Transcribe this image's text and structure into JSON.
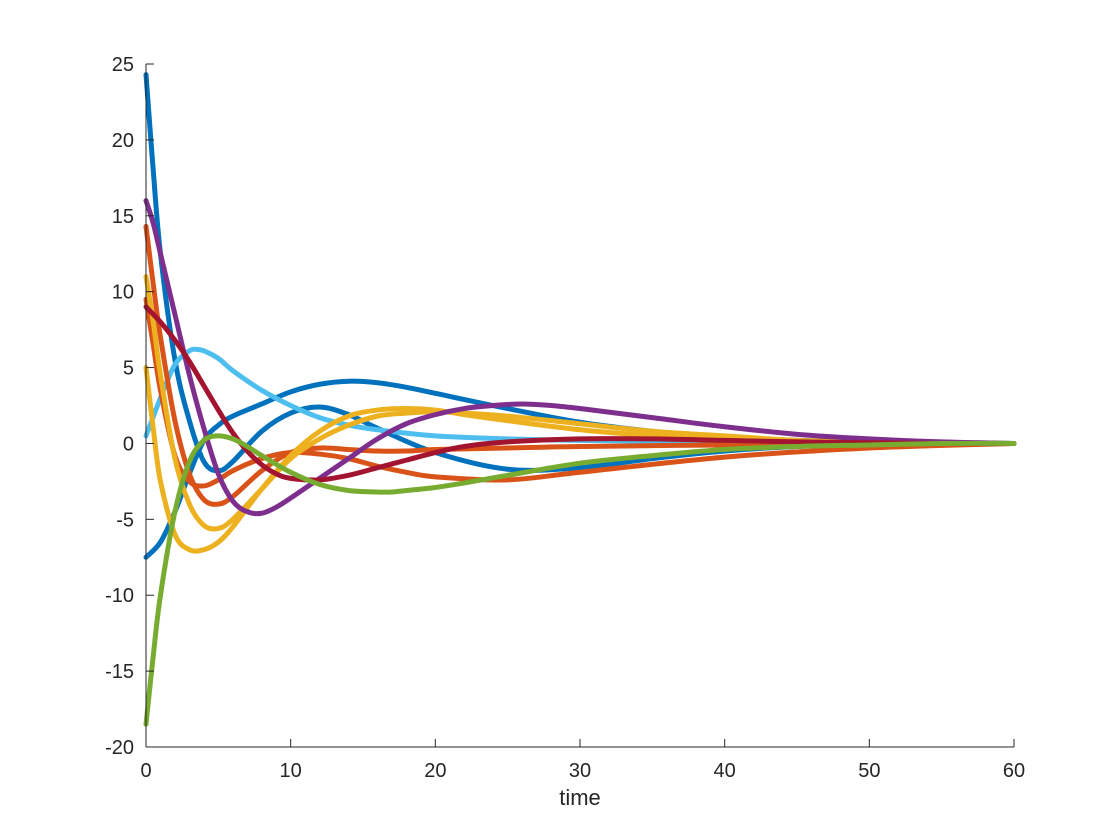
{
  "chart_data": {
    "type": "line",
    "title": "",
    "xlabel": "time",
    "ylabel": "",
    "xlim": [
      0,
      60
    ],
    "ylim": [
      -20,
      25
    ],
    "grid": false,
    "xticks": [
      0,
      10,
      20,
      30,
      40,
      50,
      60
    ],
    "yticks": [
      25,
      20,
      15,
      10,
      5,
      0,
      -5,
      -10,
      -15,
      -20
    ],
    "series": [
      {
        "color": "#0072BD",
        "x": [
          0,
          0.5,
          1,
          2,
          3,
          4,
          5,
          6,
          8,
          10,
          12,
          14,
          16,
          20,
          25,
          30,
          35,
          40,
          45,
          50,
          55,
          60
        ],
        "y": [
          24.3,
          18,
          12.5,
          5.5,
          1.5,
          -1.2,
          -1.8,
          -1.2,
          0.8,
          2.0,
          2.4,
          1.9,
          1.0,
          -0.6,
          -1.7,
          -1.6,
          -1.0,
          -0.5,
          -0.2,
          -0.1,
          0,
          0
        ]
      },
      {
        "color": "#0072BD",
        "x": [
          0,
          1,
          2,
          3,
          4,
          5,
          6,
          8,
          10,
          12,
          14,
          16,
          18,
          20,
          25,
          30,
          35,
          40,
          45,
          50,
          55,
          60
        ],
        "y": [
          -7.5,
          -6.5,
          -4.5,
          -2.0,
          0.2,
          1.2,
          1.8,
          2.6,
          3.4,
          3.9,
          4.1,
          4.0,
          3.7,
          3.3,
          2.3,
          1.4,
          0.8,
          0.4,
          0.2,
          0.1,
          0.05,
          0
        ]
      },
      {
        "color": "#4DBEEE",
        "x": [
          0,
          1,
          2,
          3,
          3.5,
          4,
          5,
          6,
          8,
          10,
          12,
          14,
          16,
          20,
          25,
          30,
          40,
          50,
          60
        ],
        "y": [
          0.5,
          3.0,
          5.2,
          6.1,
          6.2,
          6.1,
          5.6,
          4.8,
          3.5,
          2.5,
          1.7,
          1.2,
          0.9,
          0.5,
          0.3,
          0.2,
          0.1,
          0.05,
          0
        ]
      },
      {
        "color": "#D95319",
        "x": [
          0,
          0.5,
          1,
          2,
          3,
          4,
          5,
          6,
          8,
          10,
          12,
          14,
          16,
          18,
          20,
          25,
          30,
          40,
          50,
          60
        ],
        "y": [
          14.3,
          10.5,
          7.0,
          1.5,
          -2.0,
          -3.7,
          -4.0,
          -3.5,
          -1.8,
          -0.6,
          -0.3,
          -0.4,
          -0.5,
          -0.5,
          -0.4,
          -0.3,
          -0.2,
          -0.1,
          -0.05,
          0
        ]
      },
      {
        "color": "#D95319",
        "x": [
          0,
          0.5,
          1,
          2,
          3,
          4,
          5,
          6,
          8,
          10,
          12,
          14,
          16,
          18,
          20,
          25,
          30,
          40,
          50,
          60
        ],
        "y": [
          9.5,
          6.5,
          3.5,
          -0.8,
          -2.5,
          -2.8,
          -2.4,
          -1.8,
          -1.0,
          -0.6,
          -0.7,
          -1.0,
          -1.5,
          -1.9,
          -2.2,
          -2.4,
          -1.9,
          -0.9,
          -0.3,
          0
        ]
      },
      {
        "color": "#EDB120",
        "x": [
          0,
          0.5,
          1,
          2,
          3,
          4,
          5,
          6,
          8,
          10,
          12,
          14,
          16,
          18,
          20,
          22,
          25,
          30,
          35,
          40,
          45,
          50,
          55,
          60
        ],
        "y": [
          5.0,
          1.0,
          -2.5,
          -6.0,
          -7.0,
          -7.0,
          -6.5,
          -5.5,
          -3.0,
          -0.8,
          0.8,
          1.8,
          2.2,
          2.3,
          2.2,
          1.9,
          1.5,
          0.9,
          0.5,
          0.2,
          0.1,
          0.05,
          0,
          0
        ]
      },
      {
        "color": "#EDB120",
        "x": [
          0,
          0.5,
          1,
          2,
          3,
          4,
          5,
          6,
          8,
          10,
          12,
          14,
          16,
          18,
          20,
          22,
          25,
          30,
          35,
          40,
          45,
          50,
          55,
          60
        ],
        "y": [
          11.0,
          8.0,
          4.5,
          -1.0,
          -4.0,
          -5.4,
          -5.6,
          -5.0,
          -3.0,
          -1.0,
          0.3,
          1.2,
          1.8,
          2.0,
          2.1,
          2.0,
          1.8,
          1.3,
          0.8,
          0.5,
          0.2,
          0.1,
          0.05,
          0
        ]
      },
      {
        "color": "#7E2F8E",
        "x": [
          0,
          0.5,
          1,
          2,
          3,
          4,
          5,
          6,
          7,
          8,
          9,
          10,
          12,
          14,
          16,
          18,
          20,
          22,
          24,
          26,
          28,
          30,
          35,
          40,
          45,
          50,
          55,
          60
        ],
        "y": [
          16.0,
          14.5,
          12.5,
          8.5,
          4.5,
          1.0,
          -2.0,
          -3.8,
          -4.5,
          -4.6,
          -4.2,
          -3.6,
          -2.3,
          -1.0,
          0.3,
          1.3,
          1.9,
          2.3,
          2.5,
          2.6,
          2.5,
          2.3,
          1.7,
          1.1,
          0.6,
          0.3,
          0.1,
          0
        ]
      },
      {
        "color": "#A2142F",
        "x": [
          0,
          1,
          2,
          3,
          4,
          5,
          6,
          7,
          8,
          9,
          10,
          12,
          14,
          16,
          18,
          20,
          22,
          25,
          30,
          35,
          40,
          45,
          50,
          55,
          60
        ],
        "y": [
          9.0,
          8.0,
          6.8,
          5.4,
          3.8,
          2.2,
          0.7,
          -0.5,
          -1.4,
          -2.0,
          -2.3,
          -2.4,
          -2.1,
          -1.6,
          -1.1,
          -0.6,
          -0.2,
          0.1,
          0.3,
          0.3,
          0.2,
          0.1,
          0.05,
          0,
          0
        ]
      },
      {
        "color": "#77AC30",
        "x": [
          0,
          0.5,
          1,
          2,
          3,
          4,
          5,
          6,
          7,
          8,
          10,
          12,
          14,
          16,
          17,
          18,
          20,
          22,
          25,
          30,
          35,
          40,
          45,
          50,
          55,
          60
        ],
        "y": [
          -18.5,
          -14.0,
          -10.0,
          -4.5,
          -1.2,
          0.2,
          0.5,
          0.3,
          -0.2,
          -0.8,
          -1.9,
          -2.7,
          -3.1,
          -3.2,
          -3.2,
          -3.1,
          -2.9,
          -2.6,
          -2.1,
          -1.3,
          -0.8,
          -0.4,
          -0.2,
          -0.1,
          0,
          0
        ]
      }
    ]
  }
}
